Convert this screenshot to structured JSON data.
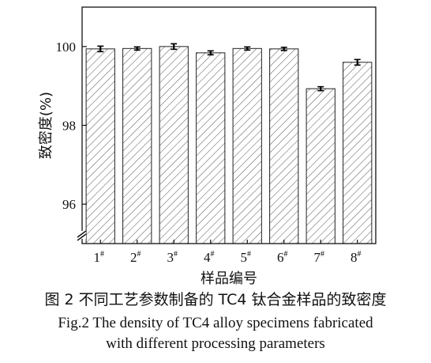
{
  "chart_data": {
    "type": "bar",
    "categories": [
      "1#",
      "2#",
      "3#",
      "4#",
      "5#",
      "6#",
      "7#",
      "8#"
    ],
    "category_labels": [
      {
        "main": "1",
        "sup": "#"
      },
      {
        "main": "2",
        "sup": "#"
      },
      {
        "main": "3",
        "sup": "#"
      },
      {
        "main": "4",
        "sup": "#"
      },
      {
        "main": "5",
        "sup": "#"
      },
      {
        "main": "6",
        "sup": "#"
      },
      {
        "main": "7",
        "sup": "#"
      },
      {
        "main": "8",
        "sup": "#"
      }
    ],
    "values": [
      99.94,
      99.95,
      100.0,
      99.84,
      99.95,
      99.94,
      98.93,
      99.6
    ],
    "errors": [
      0.05,
      0.02,
      0.05,
      0.03,
      0.02,
      0.02,
      0.03,
      0.05
    ],
    "xlabel": "样品编号",
    "ylabel": "致密度(%)",
    "ylim": [
      95.0,
      101.0
    ],
    "yticks": [
      96,
      98,
      100
    ],
    "axis_break": true,
    "bar_fill": "hatched",
    "bar_color": "#ffffff",
    "edge_color": "#111111"
  },
  "caption": {
    "cn": "图 2  不同工艺参数制备的 TC4 钛合金样品的致密度",
    "en_line1": "Fig.2  The density of TC4 alloy specimens fabricated",
    "en_line2": "with different processing parameters"
  }
}
